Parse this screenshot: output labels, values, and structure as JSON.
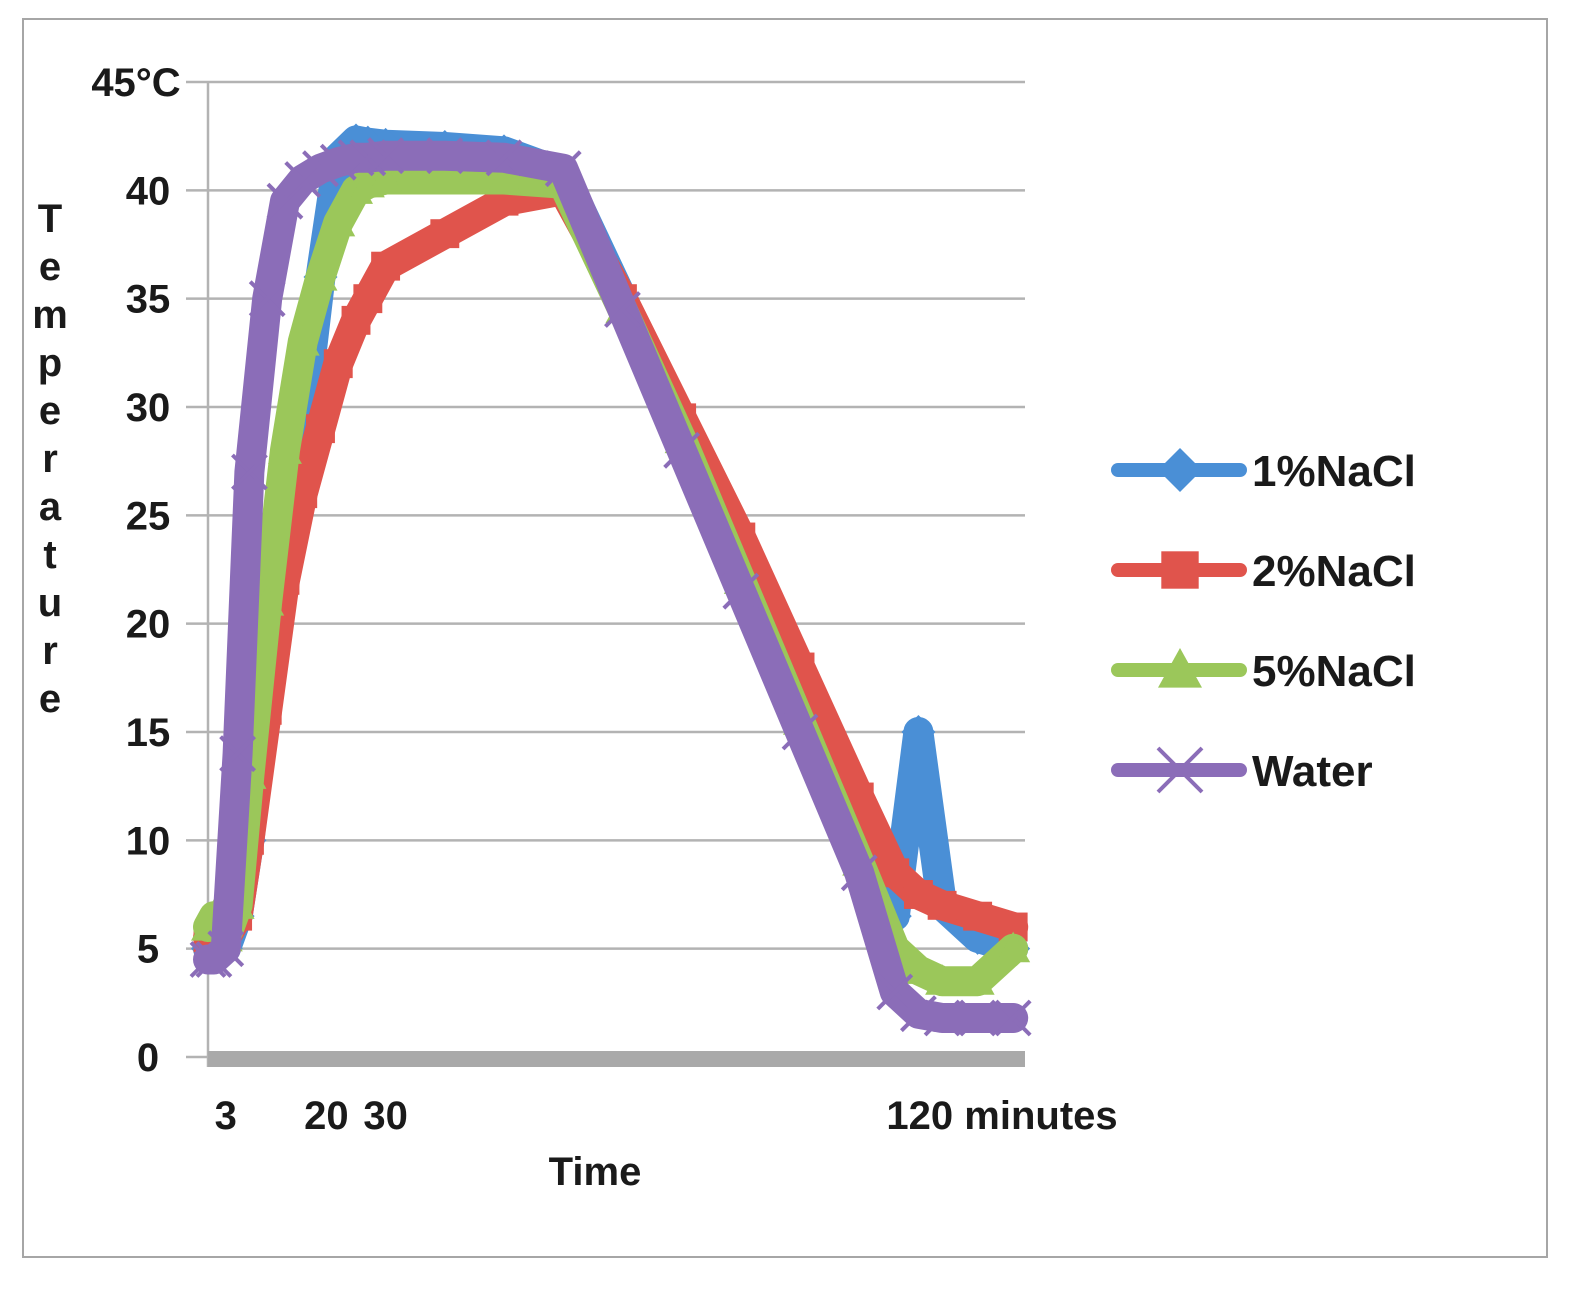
{
  "chart_data": {
    "type": "line",
    "title": "",
    "xlabel": "Time",
    "ylabel": "Temperature",
    "ylim": [
      0,
      45
    ],
    "xlim": [
      0,
      138
    ],
    "y_ticks": [
      "0",
      "5",
      "10",
      "15",
      "20",
      "25",
      "30",
      "35",
      "40",
      "45°C"
    ],
    "y_tick_values": [
      0,
      5,
      10,
      15,
      20,
      25,
      30,
      35,
      40,
      45
    ],
    "x_ticks": [
      "3",
      "20",
      "30",
      "120 minutes"
    ],
    "x_tick_values": [
      3,
      20,
      30,
      120
    ],
    "legend_position": "right",
    "series": [
      {
        "name": "1%NaCl",
        "color": "#4a8fd6",
        "marker": "diamond",
        "x": [
          0,
          1,
          3,
          5,
          7,
          10,
          13,
          16,
          19,
          22,
          25,
          27,
          30,
          40,
          50,
          60,
          70,
          80,
          90,
          100,
          110,
          116,
          120,
          124,
          130,
          136
        ],
        "y": [
          5,
          5.5,
          5,
          6.5,
          10,
          17,
          23,
          29,
          36,
          41.5,
          42.3,
          42.2,
          42.1,
          42,
          41.8,
          40.8,
          35,
          29,
          23,
          16,
          9,
          6.5,
          15,
          7,
          5.5,
          5
        ]
      },
      {
        "name": "2%NaCl",
        "color": "#e0544c",
        "marker": "square",
        "x": [
          0,
          1,
          3,
          5,
          7,
          10,
          13,
          16,
          19,
          22,
          25,
          27,
          30,
          40,
          50,
          60,
          70,
          80,
          90,
          100,
          110,
          116,
          120,
          124,
          130,
          136
        ],
        "y": [
          5.5,
          5,
          5.5,
          6.5,
          10,
          16,
          22,
          26,
          29,
          32,
          34,
          35,
          36.5,
          38,
          39.5,
          40,
          35,
          29.5,
          24,
          18,
          12,
          8.5,
          7.5,
          7,
          6.5,
          6
        ]
      },
      {
        "name": "5%NaCl",
        "color": "#9bc75a",
        "marker": "triangle",
        "x": [
          0,
          1,
          3,
          5,
          7,
          10,
          13,
          16,
          19,
          22,
          25,
          27,
          30,
          40,
          50,
          60,
          70,
          80,
          90,
          100,
          110,
          116,
          120,
          124,
          130,
          136
        ],
        "y": [
          6,
          6.5,
          5.5,
          7,
          13,
          21,
          28,
          33,
          36,
          38.5,
          40,
          40.3,
          40.5,
          40.5,
          40.5,
          40.3,
          34.5,
          28.5,
          22,
          15.5,
          9,
          5,
          4,
          3.5,
          3.5,
          5
        ]
      },
      {
        "name": "Water",
        "color": "#8b6db8",
        "marker": "x",
        "x": [
          0,
          1,
          3,
          5,
          7,
          10,
          13,
          16,
          19,
          22,
          25,
          27,
          30,
          40,
          50,
          60,
          70,
          80,
          90,
          100,
          110,
          116,
          120,
          124,
          130,
          136
        ],
        "y": [
          4.5,
          4.5,
          5,
          14,
          27,
          35,
          39.5,
          40.5,
          41,
          41.3,
          41.5,
          41.5,
          41.6,
          41.6,
          41.5,
          41,
          34.5,
          28,
          21.5,
          15,
          8.5,
          3,
          2,
          1.8,
          1.8,
          1.8
        ]
      }
    ]
  }
}
